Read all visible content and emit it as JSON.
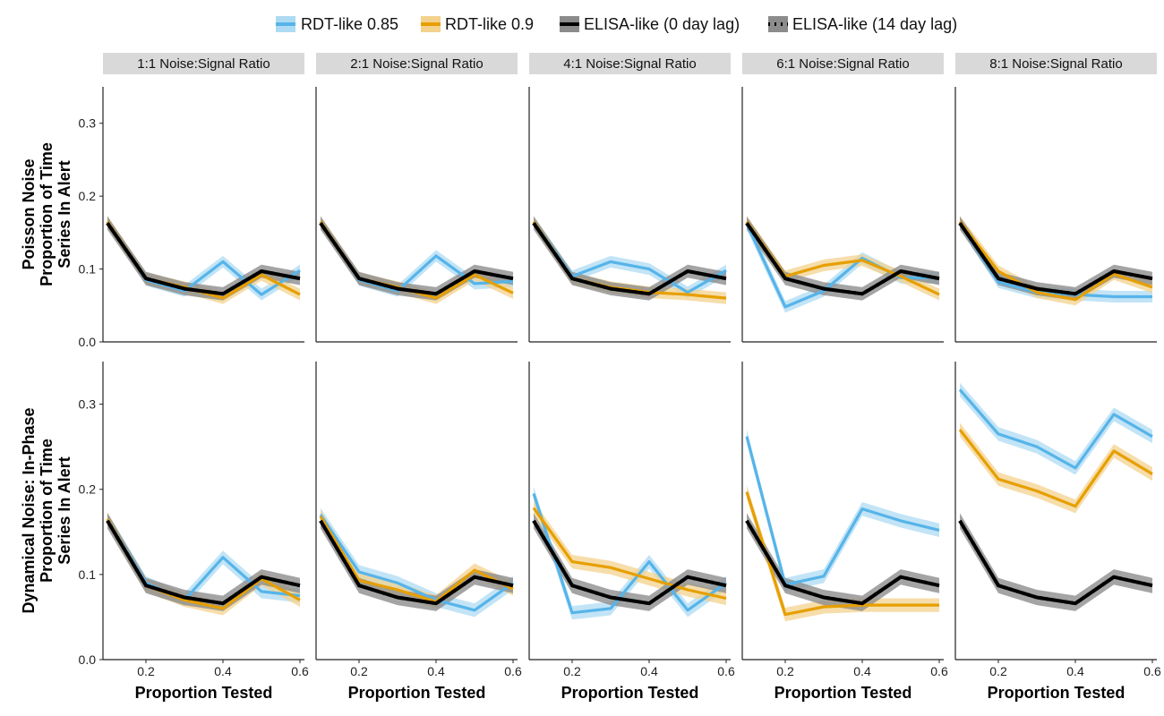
{
  "chart_data": {
    "type": "line",
    "legend": {
      "position": "top",
      "entries": [
        {
          "name": "RDT-like 0.85",
          "color": "#56B4E9",
          "style": "solid"
        },
        {
          "name": "RDT-like 0.9",
          "color": "#E69F00",
          "style": "solid"
        },
        {
          "name": "ELISA-like (0 day lag)",
          "color": "#000000",
          "style": "solid"
        },
        {
          "name": "ELISA-like (14 day lag)",
          "color": "#000000",
          "style": "dotted"
        }
      ]
    },
    "columns": [
      "1:1 Noise:Signal Ratio",
      "2:1 Noise:Signal Ratio",
      "4:1 Noise:Signal Ratio",
      "6:1 Noise:Signal Ratio",
      "8:1 Noise:Signal Ratio"
    ],
    "rows": [
      {
        "label_lines": [
          "Poisson Noise",
          "Proportion of Time",
          "Series In Alert"
        ]
      },
      {
        "label_lines": [
          "Dynamical Noise: In-Phase",
          "Proportion of Time",
          "Series In Alert"
        ]
      }
    ],
    "xlabel": "Proportion Tested",
    "x": [
      0.1,
      0.2,
      0.3,
      0.4,
      0.5,
      0.6
    ],
    "xlim": [
      0.1,
      0.6
    ],
    "xticks": [
      "0.2",
      "0.4",
      "0.6"
    ],
    "ylim": [
      0.0,
      0.35
    ],
    "yticks": [
      "0.0",
      "0.1",
      "0.2",
      "0.3"
    ],
    "grid": false,
    "panels": [
      [
        {
          "RDT-like 0.85": [
            0.165,
            0.085,
            0.07,
            0.11,
            0.065,
            0.098
          ],
          "RDT-like 0.9": [
            0.165,
            0.087,
            0.075,
            0.06,
            0.092,
            0.065
          ],
          "ELISA-like (0 day lag)": [
            0.163,
            0.087,
            0.073,
            0.066,
            0.097,
            0.087
          ],
          "ELISA-like (14 day lag)": [
            0.163,
            0.087,
            0.073,
            0.066,
            0.097,
            0.087
          ]
        },
        {
          "RDT-like 0.85": [
            0.165,
            0.085,
            0.07,
            0.118,
            0.08,
            0.083
          ],
          "RDT-like 0.9": [
            0.165,
            0.087,
            0.075,
            0.06,
            0.092,
            0.067
          ],
          "ELISA-like (0 day lag)": [
            0.163,
            0.087,
            0.073,
            0.066,
            0.097,
            0.087
          ],
          "ELISA-like (14 day lag)": [
            0.163,
            0.087,
            0.073,
            0.066,
            0.097,
            0.087
          ]
        },
        {
          "RDT-like 0.85": [
            0.165,
            0.09,
            0.11,
            0.1,
            0.068,
            0.098
          ],
          "RDT-like 0.9": [
            0.165,
            0.087,
            0.075,
            0.068,
            0.065,
            0.06
          ],
          "ELISA-like (0 day lag)": [
            0.163,
            0.087,
            0.073,
            0.066,
            0.097,
            0.087
          ],
          "ELISA-like (14 day lag)": [
            0.163,
            0.087,
            0.073,
            0.066,
            0.097,
            0.087
          ]
        },
        {
          "RDT-like 0.85": [
            0.162,
            0.048,
            0.07,
            0.115,
            0.088,
            0.088
          ],
          "RDT-like 0.9": [
            0.165,
            0.09,
            0.105,
            0.112,
            0.09,
            0.065
          ],
          "ELISA-like (0 day lag)": [
            0.163,
            0.087,
            0.073,
            0.066,
            0.097,
            0.087
          ],
          "ELISA-like (14 day lag)": [
            0.163,
            0.087,
            0.073,
            0.066,
            0.097,
            0.087
          ]
        },
        {
          "RDT-like 0.85": [
            0.163,
            0.082,
            0.068,
            0.065,
            0.062,
            0.062
          ],
          "RDT-like 0.9": [
            0.165,
            0.097,
            0.068,
            0.058,
            0.093,
            0.075
          ],
          "ELISA-like (0 day lag)": [
            0.163,
            0.087,
            0.073,
            0.066,
            0.097,
            0.087
          ],
          "ELISA-like (14 day lag)": [
            0.163,
            0.087,
            0.073,
            0.066,
            0.097,
            0.087
          ]
        }
      ],
      [
        {
          "RDT-like 0.85": [
            0.165,
            0.09,
            0.07,
            0.12,
            0.08,
            0.075
          ],
          "RDT-like 0.9": [
            0.165,
            0.087,
            0.07,
            0.06,
            0.095,
            0.07
          ],
          "ELISA-like (0 day lag)": [
            0.163,
            0.087,
            0.073,
            0.066,
            0.097,
            0.087
          ],
          "ELISA-like (14 day lag)": [
            0.163,
            0.087,
            0.073,
            0.066,
            0.097,
            0.087
          ]
        },
        {
          "RDT-like 0.85": [
            0.17,
            0.103,
            0.09,
            0.07,
            0.058,
            0.09
          ],
          "RDT-like 0.9": [
            0.168,
            0.093,
            0.082,
            0.068,
            0.105,
            0.083
          ],
          "ELISA-like (0 day lag)": [
            0.163,
            0.087,
            0.073,
            0.066,
            0.097,
            0.087
          ],
          "ELISA-like (14 day lag)": [
            0.163,
            0.087,
            0.073,
            0.066,
            0.097,
            0.087
          ]
        },
        {
          "RDT-like 0.85": [
            0.195,
            0.055,
            0.06,
            0.115,
            0.058,
            0.09
          ],
          "RDT-like 0.9": [
            0.178,
            0.115,
            0.108,
            0.095,
            0.082,
            0.072
          ],
          "ELISA-like (0 day lag)": [
            0.163,
            0.087,
            0.073,
            0.066,
            0.097,
            0.087
          ],
          "ELISA-like (14 day lag)": [
            0.163,
            0.087,
            0.073,
            0.066,
            0.097,
            0.087
          ]
        },
        {
          "RDT-like 0.85": [
            0.262,
            0.088,
            0.098,
            0.177,
            0.163,
            0.152
          ],
          "RDT-like 0.9": [
            0.197,
            0.053,
            0.062,
            0.064,
            0.064,
            0.064
          ],
          "ELISA-like (0 day lag)": [
            0.163,
            0.087,
            0.073,
            0.066,
            0.097,
            0.087
          ],
          "ELISA-like (14 day lag)": [
            0.163,
            0.087,
            0.073,
            0.066,
            0.097,
            0.087
          ]
        },
        {
          "RDT-like 0.85": [
            0.317,
            0.265,
            0.25,
            0.225,
            0.288,
            0.262
          ],
          "RDT-like 0.9": [
            0.27,
            0.212,
            0.198,
            0.18,
            0.245,
            0.218
          ],
          "ELISA-like (0 day lag)": [
            0.163,
            0.087,
            0.073,
            0.066,
            0.097,
            0.087
          ],
          "ELISA-like (14 day lag)": [
            0.163,
            0.087,
            0.073,
            0.066,
            0.097,
            0.087
          ]
        }
      ]
    ],
    "ribbon_halfwidths": {
      "RDT-like 0.85": 0.008,
      "RDT-like 0.9": 0.008,
      "ELISA-like (0 day lag)": 0.009,
      "ELISA-like (14 day lag)": 0.009
    },
    "ribbon_colors": {
      "RDT-like 0.85": "#AEDBF3",
      "RDT-like 0.9": "#F3D28E",
      "ELISA-like (0 day lag)": "#8C8C8C",
      "ELISA-like (14 day lag)": "#8C8C8C"
    },
    "strip_color": "#D9D9D9"
  }
}
